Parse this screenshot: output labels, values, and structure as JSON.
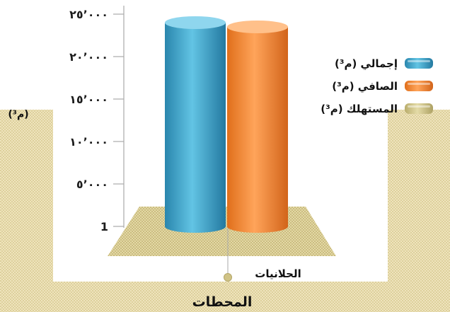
{
  "chart_data": {
    "type": "bar",
    "categories": [
      "الحلانيات"
    ],
    "series": [
      {
        "name": "إجمالي (م³)",
        "values": [
          24000
        ],
        "color": "#3aa6cc"
      },
      {
        "name": "الصافي (م³)",
        "values": [
          23500
        ],
        "color": "#f4862e"
      },
      {
        "name": "المستهلك (م³)",
        "values": [
          0
        ],
        "color": "#d3c88c"
      }
    ],
    "title": "",
    "xlabel": "المحطات",
    "ylabel": "(م³)",
    "ylim": [
      1,
      25000
    ],
    "yticks": [
      {
        "value": 1,
        "label": "1"
      },
      {
        "value": 5000,
        "label": "٥٬٠٠٠"
      },
      {
        "value": 10000,
        "label": "١٠٬٠٠٠"
      },
      {
        "value": 15000,
        "label": "١٥٬٠٠٠"
      },
      {
        "value": 20000,
        "label": "٢٠٬٠٠٠"
      },
      {
        "value": 25000,
        "label": "٢٥٬٠٠٠"
      }
    ],
    "legend_position": "right",
    "bar_style": "3d-cylinder",
    "colors": {
      "floor": "#d9cf99",
      "band": "#f1e7c3",
      "axis": "#999999"
    }
  }
}
